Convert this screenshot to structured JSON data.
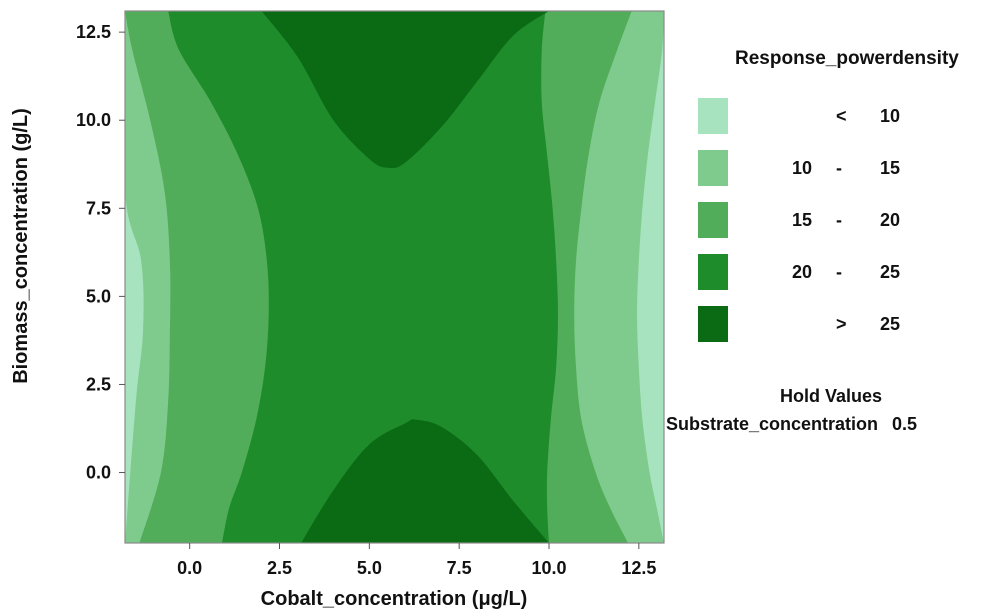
{
  "chart_data": {
    "type": "contour",
    "xlabel": "Cobalt_concentration (μg/L)",
    "ylabel": "Biomass_concentration (g/L)",
    "xlim": [
      -1.8,
      13.2
    ],
    "ylim": [
      -2.0,
      13.1
    ],
    "x_ticks": [
      "0.0",
      "2.5",
      "5.0",
      "7.5",
      "10.0",
      "12.5"
    ],
    "y_ticks": [
      "0.0",
      "2.5",
      "5.0",
      "7.5",
      "10.0",
      "12.5"
    ],
    "x_tick_values": [
      0,
      2.5,
      5,
      7.5,
      10,
      12.5
    ],
    "y_tick_values": [
      0,
      2.5,
      5,
      7.5,
      10,
      12.5
    ],
    "legend_title": "Response_powerdensity",
    "levels": [
      {
        "label": [
          "",
          "<",
          "10"
        ],
        "color": "#a8e3bf"
      },
      {
        "label": [
          "10",
          "-",
          "15"
        ],
        "color": "#7fcb8d"
      },
      {
        "label": [
          "15",
          "-",
          "20"
        ],
        "color": "#52ad5a"
      },
      {
        "label": [
          "20",
          "-",
          "25"
        ],
        "color": "#1f8c2b"
      },
      {
        "label": [
          "",
          ">",
          "25"
        ],
        "color": "#0b6a14"
      }
    ],
    "boundaries": [
      {
        "name": "lt10",
        "type": "vertical",
        "y": [
          -2.0,
          2.0,
          4.0,
          6.0,
          8.0,
          13.1
        ],
        "x": [
          -1.8,
          -1.5,
          -1.3,
          -1.35,
          -1.8,
          -1.8
        ]
      },
      {
        "name": "b15_left",
        "type": "vertical",
        "y": [
          -2.0,
          0.0,
          2.0,
          4.0,
          6.0,
          8.0,
          10.0,
          12.0,
          13.1
        ],
        "x": [
          -1.4,
          -0.8,
          -0.6,
          -0.55,
          -0.55,
          -0.7,
          -1.1,
          -1.6,
          -1.8
        ]
      },
      {
        "name": "b20_left",
        "type": "vertical",
        "y": [
          -2.0,
          -1.0,
          0.0,
          1.5,
          3.0,
          4.5,
          6.0,
          7.5,
          9.0,
          10.5,
          12.0,
          13.1
        ],
        "x": [
          0.9,
          1.1,
          1.45,
          1.85,
          2.1,
          2.2,
          2.15,
          1.9,
          1.35,
          0.6,
          -0.3,
          -0.6
        ]
      },
      {
        "name": "b25_top",
        "type": "horizontal",
        "x": [
          2.0,
          3.0,
          4.0,
          5.0,
          5.5,
          6.0,
          7.0,
          8.0,
          9.0,
          10.0
        ],
        "y": [
          13.1,
          11.8,
          10.0,
          8.9,
          8.65,
          8.8,
          9.8,
          11.1,
          12.4,
          13.1
        ]
      },
      {
        "name": "b25_bottom",
        "type": "horizontal",
        "x": [
          3.1,
          4.0,
          5.0,
          6.0,
          6.3,
          7.0,
          8.0,
          9.0,
          10.0
        ],
        "y": [
          -2.0,
          -0.5,
          0.8,
          1.4,
          1.5,
          1.3,
          0.5,
          -0.8,
          -2.0
        ]
      },
      {
        "name": "b20_right",
        "type": "vertical",
        "y": [
          -2.0,
          -1.0,
          0.0,
          1.5,
          3.0,
          4.5,
          6.0,
          7.5,
          9.0,
          10.5,
          12.0,
          13.1
        ],
        "x": [
          10.0,
          9.95,
          9.95,
          10.05,
          10.2,
          10.25,
          10.2,
          10.1,
          9.95,
          9.8,
          9.8,
          9.9
        ]
      },
      {
        "name": "b15_right",
        "type": "vertical",
        "y": [
          -2.0,
          -1.0,
          0.0,
          1.5,
          3.0,
          4.5,
          6.0,
          7.5,
          9.0,
          10.5,
          12.0,
          13.1
        ],
        "x": [
          12.2,
          11.7,
          11.3,
          10.9,
          10.75,
          10.7,
          10.75,
          10.9,
          11.1,
          11.4,
          11.9,
          12.3
        ]
      },
      {
        "name": "b10_right",
        "type": "vertical",
        "y": [
          -2.0,
          -1.0,
          0.0,
          1.5,
          3.0,
          4.5,
          6.0,
          7.5,
          9.0,
          10.5,
          12.0,
          13.1
        ],
        "x": [
          13.2,
          13.0,
          12.8,
          12.6,
          12.5,
          12.45,
          12.5,
          12.6,
          12.75,
          12.95,
          13.15,
          13.2
        ]
      }
    ],
    "hold_values_title": "Hold Values",
    "hold_values": [
      {
        "name": "Substrate_concentration",
        "value": "0.5"
      }
    ]
  }
}
